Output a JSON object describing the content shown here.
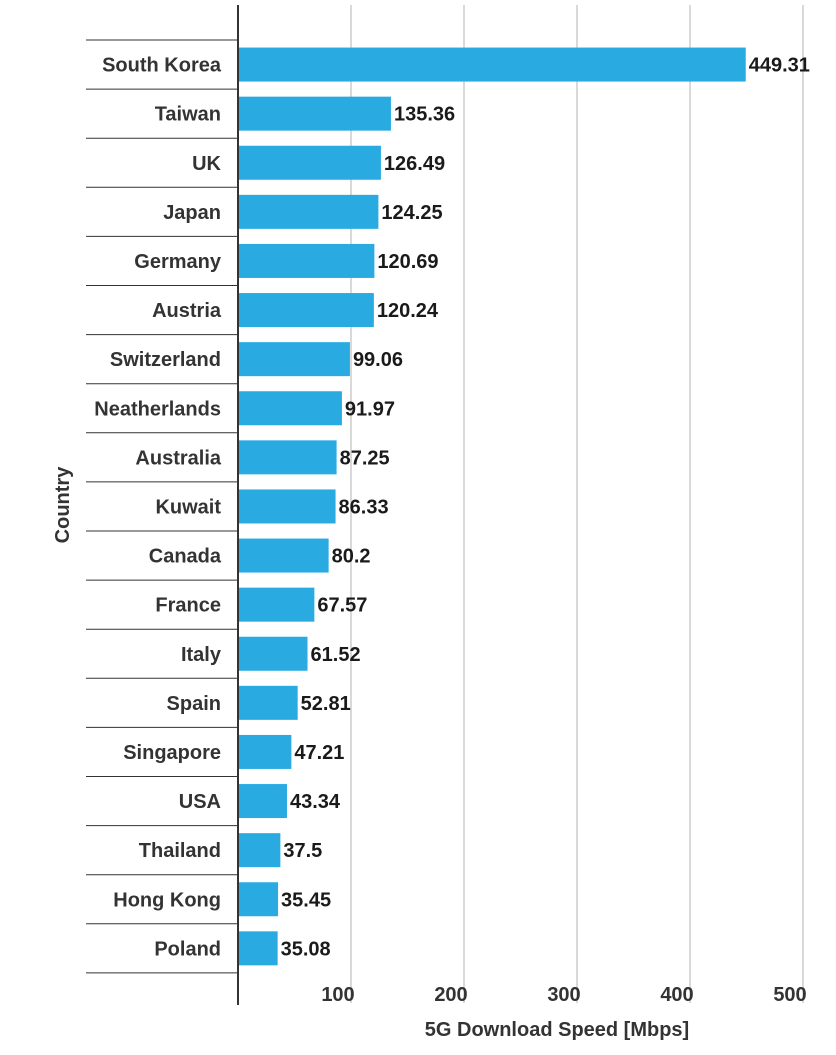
{
  "chart_data": {
    "type": "bar",
    "orientation": "horizontal",
    "categories": [
      "South Korea",
      "Taiwan",
      "UK",
      "Japan",
      "Germany",
      "Austria",
      "Switzerland",
      "Neatherlands",
      "Australia",
      "Kuwait",
      "Canada",
      "France",
      "Italy",
      "Spain",
      "Singapore",
      "USA",
      "Thailand",
      "Hong Kong",
      "Poland"
    ],
    "values": [
      449.31,
      135.36,
      126.49,
      124.25,
      120.69,
      120.24,
      99.06,
      91.97,
      87.25,
      86.33,
      80.2,
      67.57,
      61.52,
      52.81,
      47.21,
      43.34,
      37.5,
      35.45,
      35.08
    ],
    "value_labels": [
      "449.31",
      "135.36",
      "126.49",
      "124.25",
      "120.69",
      "120.24",
      "99.06",
      "91.97",
      "87.25",
      "86.33",
      "80.2",
      "67.57",
      "61.52",
      "52.81",
      "47.21",
      "43.34",
      "37.5",
      "35.45",
      "35.08"
    ],
    "xlabel": "5G Download Speed [Mbps]",
    "ylabel": "Country",
    "xlim": [
      0,
      500
    ],
    "x_ticks": [
      "100",
      "200",
      "300",
      "400",
      "500"
    ],
    "grid": true,
    "colors": {
      "bar": "#29abe2",
      "grid": "#d9d9d9",
      "axis": "#333333"
    }
  }
}
